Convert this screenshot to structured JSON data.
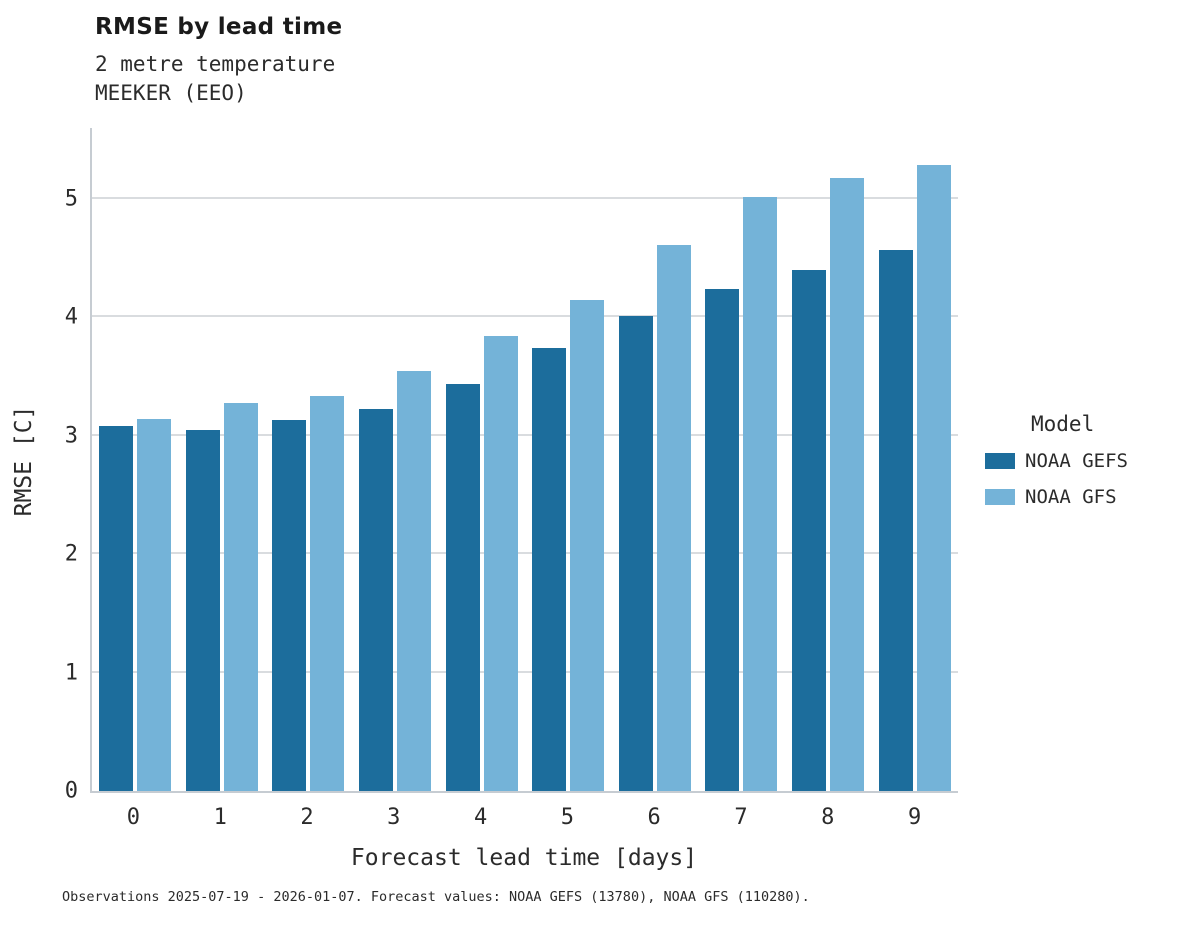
{
  "header": {
    "title": "RMSE by lead time",
    "subtitle1": "2 metre temperature",
    "subtitle2": "MEEKER (EEO)"
  },
  "footer": {
    "caption": "Observations 2025-07-19 - 2026-01-07. Forecast values: NOAA GEFS (13780), NOAA GFS (110280)."
  },
  "legend": {
    "title": "Model",
    "entries": [
      {
        "label": "NOAA GEFS",
        "color": "#1c6d9c"
      },
      {
        "label": "NOAA GFS",
        "color": "#74b3d8"
      }
    ]
  },
  "colors": {
    "gefs": "#1c6d9c",
    "gfs": "#74b3d8",
    "gridline": "#d9dcdf",
    "axis": "#c6ccd2"
  },
  "chart_data": {
    "type": "bar",
    "title": "RMSE by lead time",
    "subtitle": "2 metre temperature — MEEKER (EEO)",
    "xlabel": "Forecast lead time [days]",
    "ylabel": "RMSE [C]",
    "categories": [
      "0",
      "1",
      "2",
      "3",
      "4",
      "5",
      "6",
      "7",
      "8",
      "9"
    ],
    "series": [
      {
        "name": "NOAA GEFS",
        "color": "#1c6d9c",
        "values": [
          3.08,
          3.05,
          3.13,
          3.23,
          3.44,
          3.74,
          4.01,
          4.24,
          4.4,
          4.57
        ]
      },
      {
        "name": "NOAA GFS",
        "color": "#74b3d8",
        "values": [
          3.14,
          3.28,
          3.34,
          3.55,
          3.84,
          4.15,
          4.61,
          5.02,
          5.18,
          5.29
        ]
      }
    ],
    "ylim": [
      0,
      5.6
    ],
    "yticks": [
      0,
      1,
      2,
      3,
      4,
      5
    ],
    "grid": true,
    "legend_position": "right"
  }
}
